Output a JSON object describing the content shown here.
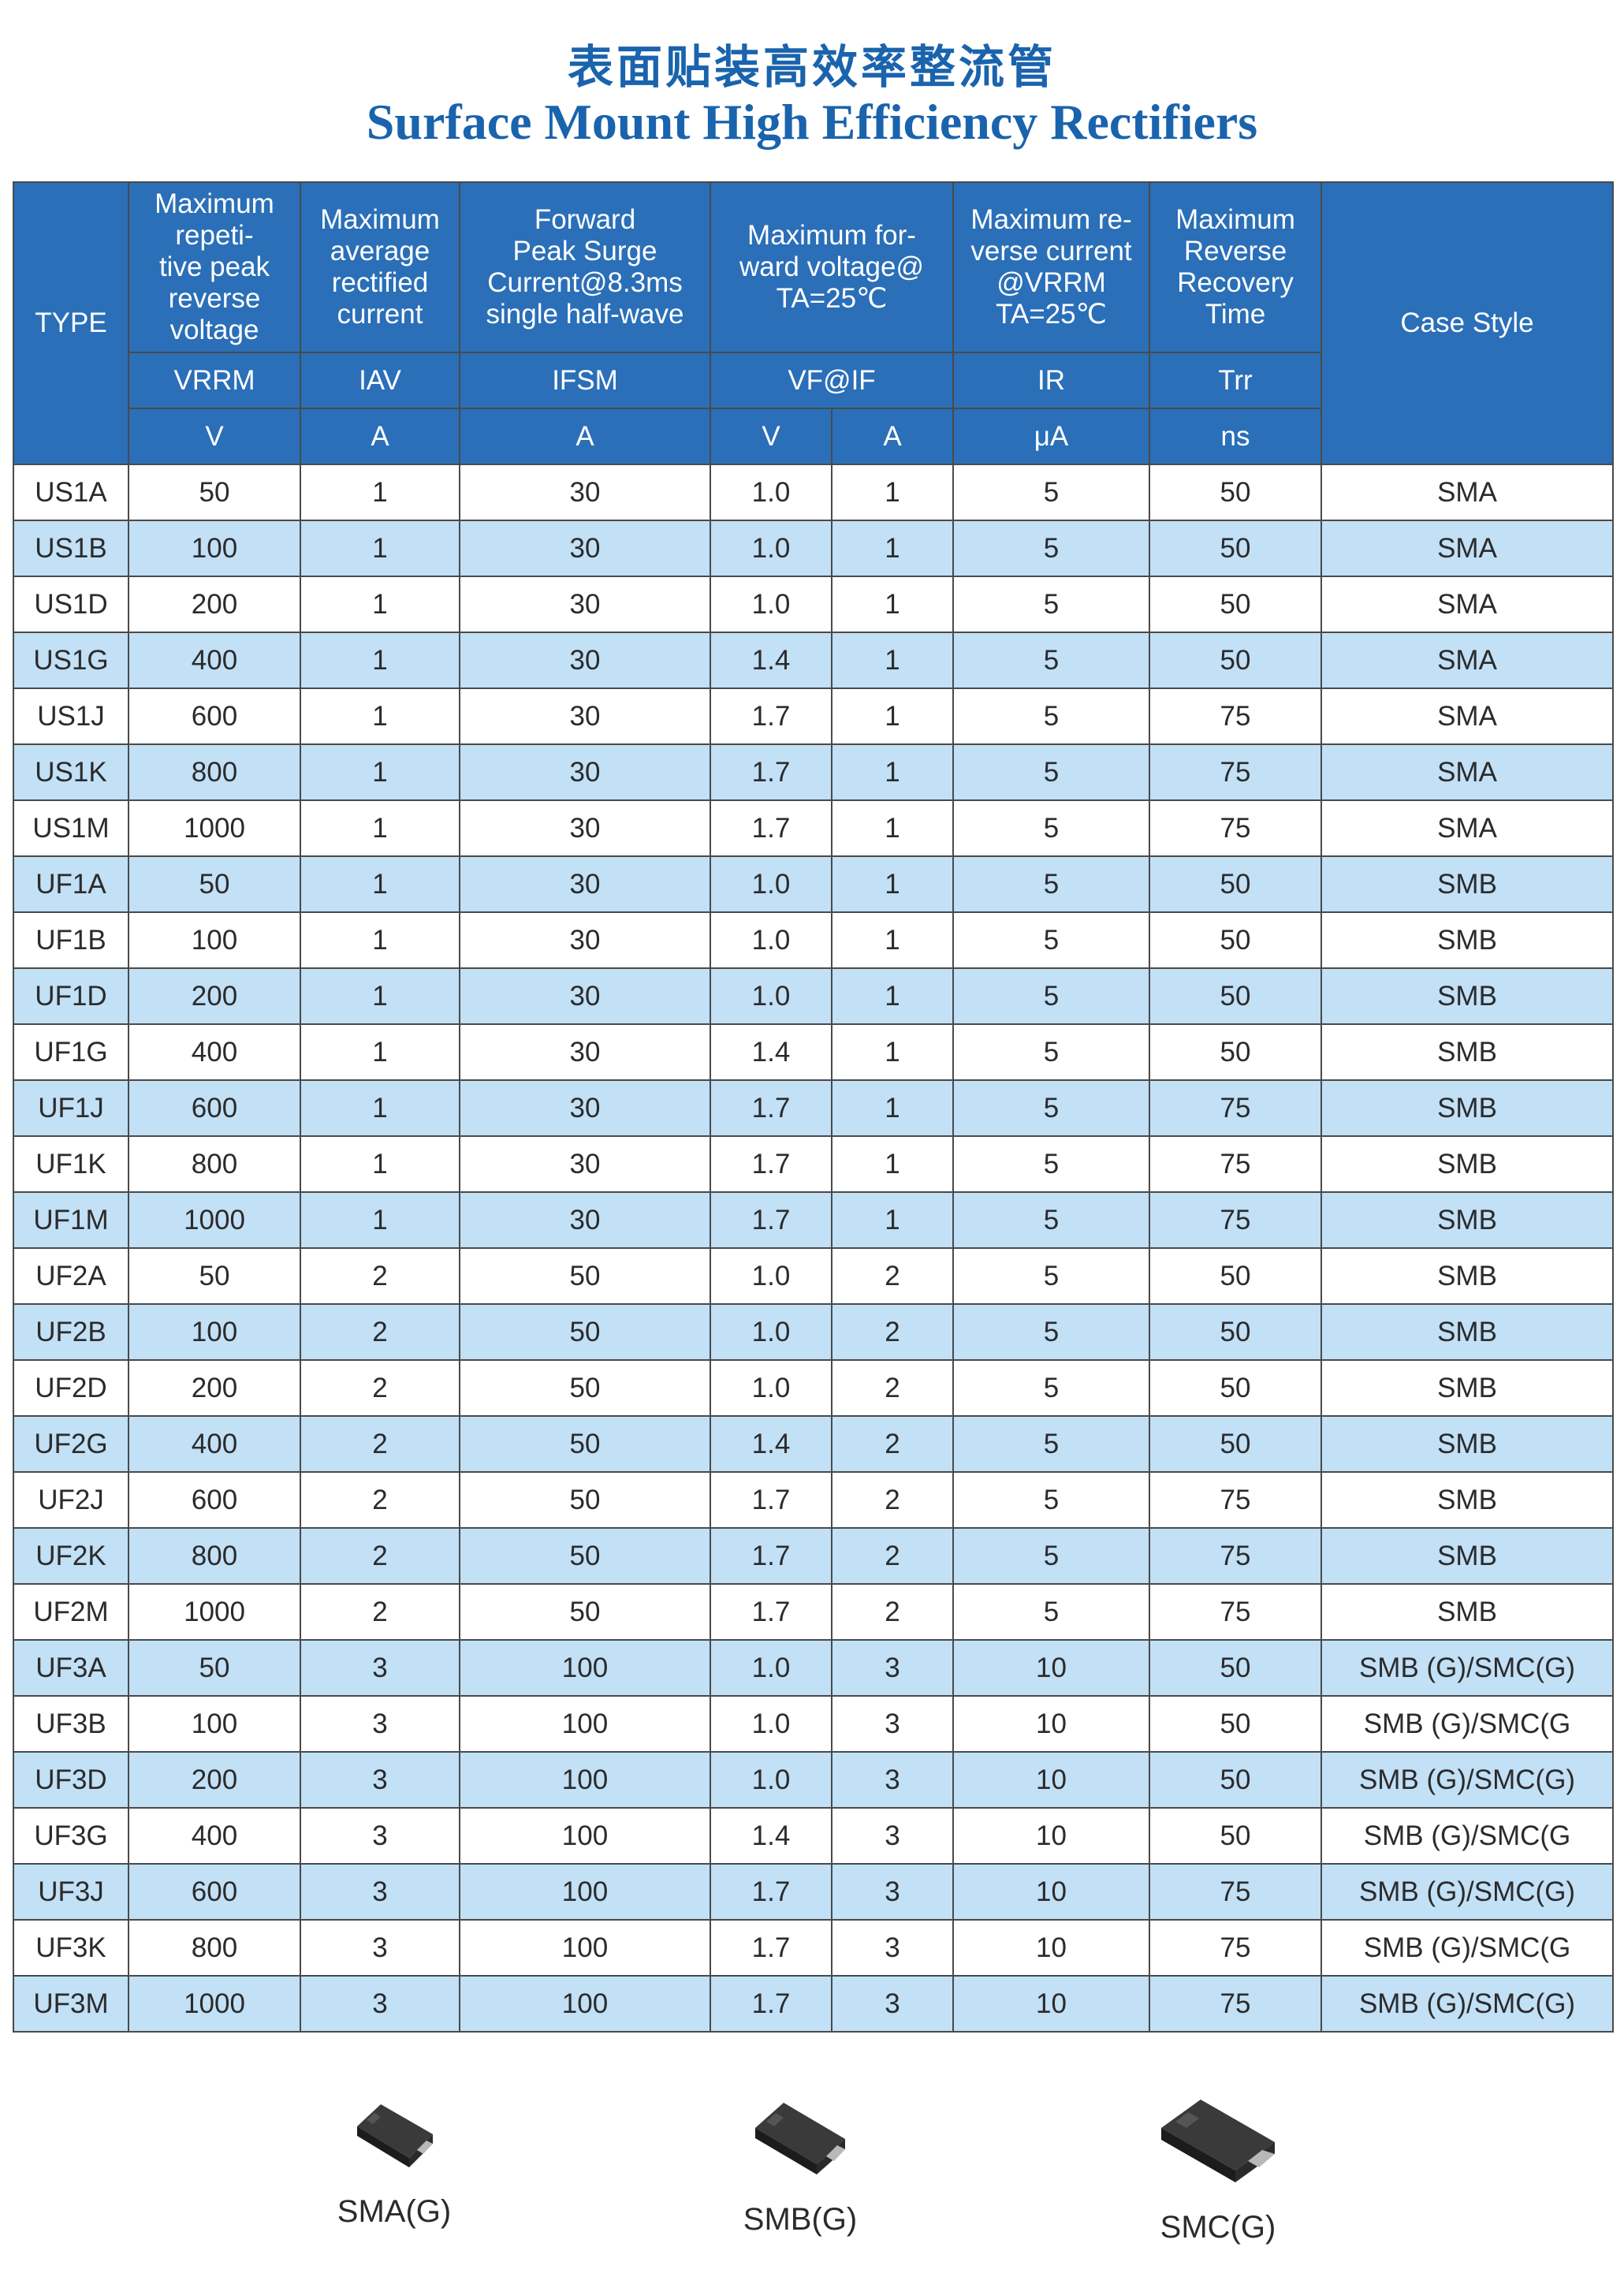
{
  "title_cn": "表面贴装高效率整流管",
  "title_en": "Surface Mount High Efficiency Rectifiers",
  "table": {
    "headers": {
      "type": "TYPE",
      "vrrm_desc": "Maximum\nrepeti-\ntive peak\nreverse\nvoltage",
      "iav_desc": "Maximum\naverage\nrectified\ncurrent",
      "ifsm_desc": "Forward\nPeak Surge\nCurrent@8.3ms\nsingle half-wave",
      "vf_desc": "Maximum for-\nward voltage@\nTA=25℃",
      "ir_desc": "Maximum re-\nverse current\n@VRRM\nTA=25℃",
      "trr_desc": "Maximum\nReverse\nRecovery\nTime",
      "case": "Case Style",
      "sym_vrrm": "VRRM",
      "sym_iav": "IAV",
      "sym_ifsm": "IFSM",
      "sym_vfif": "VF@IF",
      "sym_ir": "IR",
      "sym_trr": "Trr",
      "unit_v": "V",
      "unit_a1": "A",
      "unit_a2": "A",
      "unit_vf": "V",
      "unit_if": "A",
      "unit_ir": "μA",
      "unit_trr": "ns"
    },
    "rows": [
      [
        "US1A",
        "50",
        "1",
        "30",
        "1.0",
        "1",
        "5",
        "50",
        "SMA"
      ],
      [
        "US1B",
        "100",
        "1",
        "30",
        "1.0",
        "1",
        "5",
        "50",
        "SMA"
      ],
      [
        "US1D",
        "200",
        "1",
        "30",
        "1.0",
        "1",
        "5",
        "50",
        "SMA"
      ],
      [
        "US1G",
        "400",
        "1",
        "30",
        "1.4",
        "1",
        "5",
        "50",
        "SMA"
      ],
      [
        "US1J",
        "600",
        "1",
        "30",
        "1.7",
        "1",
        "5",
        "75",
        "SMA"
      ],
      [
        "US1K",
        "800",
        "1",
        "30",
        "1.7",
        "1",
        "5",
        "75",
        "SMA"
      ],
      [
        "US1M",
        "1000",
        "1",
        "30",
        "1.7",
        "1",
        "5",
        "75",
        "SMA"
      ],
      [
        "UF1A",
        "50",
        "1",
        "30",
        "1.0",
        "1",
        "5",
        "50",
        "SMB"
      ],
      [
        "UF1B",
        "100",
        "1",
        "30",
        "1.0",
        "1",
        "5",
        "50",
        "SMB"
      ],
      [
        "UF1D",
        "200",
        "1",
        "30",
        "1.0",
        "1",
        "5",
        "50",
        "SMB"
      ],
      [
        "UF1G",
        "400",
        "1",
        "30",
        "1.4",
        "1",
        "5",
        "50",
        "SMB"
      ],
      [
        "UF1J",
        "600",
        "1",
        "30",
        "1.7",
        "1",
        "5",
        "75",
        "SMB"
      ],
      [
        "UF1K",
        "800",
        "1",
        "30",
        "1.7",
        "1",
        "5",
        "75",
        "SMB"
      ],
      [
        "UF1M",
        "1000",
        "1",
        "30",
        "1.7",
        "1",
        "5",
        "75",
        "SMB"
      ],
      [
        "UF2A",
        "50",
        "2",
        "50",
        "1.0",
        "2",
        "5",
        "50",
        "SMB"
      ],
      [
        "UF2B",
        "100",
        "2",
        "50",
        "1.0",
        "2",
        "5",
        "50",
        "SMB"
      ],
      [
        "UF2D",
        "200",
        "2",
        "50",
        "1.0",
        "2",
        "5",
        "50",
        "SMB"
      ],
      [
        "UF2G",
        "400",
        "2",
        "50",
        "1.4",
        "2",
        "5",
        "50",
        "SMB"
      ],
      [
        "UF2J",
        "600",
        "2",
        "50",
        "1.7",
        "2",
        "5",
        "75",
        "SMB"
      ],
      [
        "UF2K",
        "800",
        "2",
        "50",
        "1.7",
        "2",
        "5",
        "75",
        "SMB"
      ],
      [
        "UF2M",
        "1000",
        "2",
        "50",
        "1.7",
        "2",
        "5",
        "75",
        "SMB"
      ],
      [
        "UF3A",
        "50",
        "3",
        "100",
        "1.0",
        "3",
        "10",
        "50",
        "SMB (G)/SMC(G)"
      ],
      [
        "UF3B",
        "100",
        "3",
        "100",
        "1.0",
        "3",
        "10",
        "50",
        "SMB (G)/SMC(G"
      ],
      [
        "UF3D",
        "200",
        "3",
        "100",
        "1.0",
        "3",
        "10",
        "50",
        "SMB (G)/SMC(G)"
      ],
      [
        "UF3G",
        "400",
        "3",
        "100",
        "1.4",
        "3",
        "10",
        "50",
        "SMB (G)/SMC(G"
      ],
      [
        "UF3J",
        "600",
        "3",
        "100",
        "1.7",
        "3",
        "10",
        "75",
        "SMB (G)/SMC(G)"
      ],
      [
        "UF3K",
        "800",
        "3",
        "100",
        "1.7",
        "3",
        "10",
        "75",
        "SMB (G)/SMC(G"
      ],
      [
        "UF3M",
        "1000",
        "3",
        "100",
        "1.7",
        "3",
        "10",
        "75",
        "SMB (G)/SMC(G)"
      ]
    ]
  },
  "packages": [
    {
      "label": "SMA(G)",
      "icon": "sma-package-icon"
    },
    {
      "label": "SMB(G)",
      "icon": "smb-package-icon"
    },
    {
      "label": "SMC(G)",
      "icon": "smc-package-icon"
    }
  ],
  "colors": {
    "title": "#1a63ad",
    "header_bg": "#2a6fb8",
    "alt_row_bg": "#c2e0f6",
    "border": "#4a4a4a"
  }
}
